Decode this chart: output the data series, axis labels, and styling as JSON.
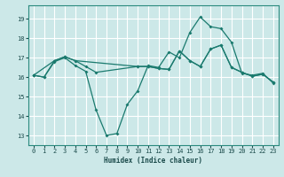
{
  "xlabel": "Humidex (Indice chaleur)",
  "xlim": [
    -0.5,
    23.5
  ],
  "ylim": [
    12.5,
    19.7
  ],
  "yticks": [
    13,
    14,
    15,
    16,
    17,
    18,
    19
  ],
  "xticks": [
    0,
    1,
    2,
    3,
    4,
    5,
    6,
    7,
    8,
    9,
    10,
    11,
    12,
    13,
    14,
    15,
    16,
    17,
    18,
    19,
    20,
    21,
    22,
    23
  ],
  "bg_color": "#cce8e8",
  "line_color": "#1a7a6e",
  "grid_color": "#ffffff",
  "line1_x": [
    0,
    1,
    2,
    3,
    4,
    5,
    6,
    7,
    8,
    9,
    10,
    11,
    12,
    13,
    14,
    15,
    16,
    17,
    18,
    19,
    20,
    21,
    22,
    23
  ],
  "line1_y": [
    16.1,
    16.0,
    16.8,
    17.0,
    16.6,
    16.3,
    14.3,
    13.0,
    13.1,
    14.6,
    15.3,
    16.6,
    16.5,
    17.3,
    17.0,
    18.3,
    19.1,
    18.6,
    18.5,
    17.8,
    16.2,
    16.1,
    16.2,
    15.7
  ],
  "line2_x": [
    0,
    1,
    2,
    3,
    4,
    5,
    6,
    10,
    11,
    12,
    13,
    14,
    15,
    16,
    17,
    18,
    19,
    20,
    21,
    22,
    23
  ],
  "line2_y": [
    16.1,
    16.0,
    16.85,
    17.05,
    16.85,
    16.55,
    16.25,
    16.55,
    16.55,
    16.45,
    16.4,
    17.35,
    16.85,
    16.55,
    17.45,
    17.65,
    16.5,
    16.25,
    16.05,
    16.15,
    15.75
  ],
  "line3_x": [
    0,
    2,
    3,
    4,
    10,
    11,
    12,
    13,
    14,
    15,
    16,
    17,
    18,
    19,
    20,
    21,
    22,
    23
  ],
  "line3_y": [
    16.1,
    16.85,
    17.05,
    16.85,
    16.55,
    16.55,
    16.45,
    16.4,
    17.35,
    16.85,
    16.55,
    17.45,
    17.65,
    16.5,
    16.25,
    16.05,
    16.15,
    15.75
  ]
}
